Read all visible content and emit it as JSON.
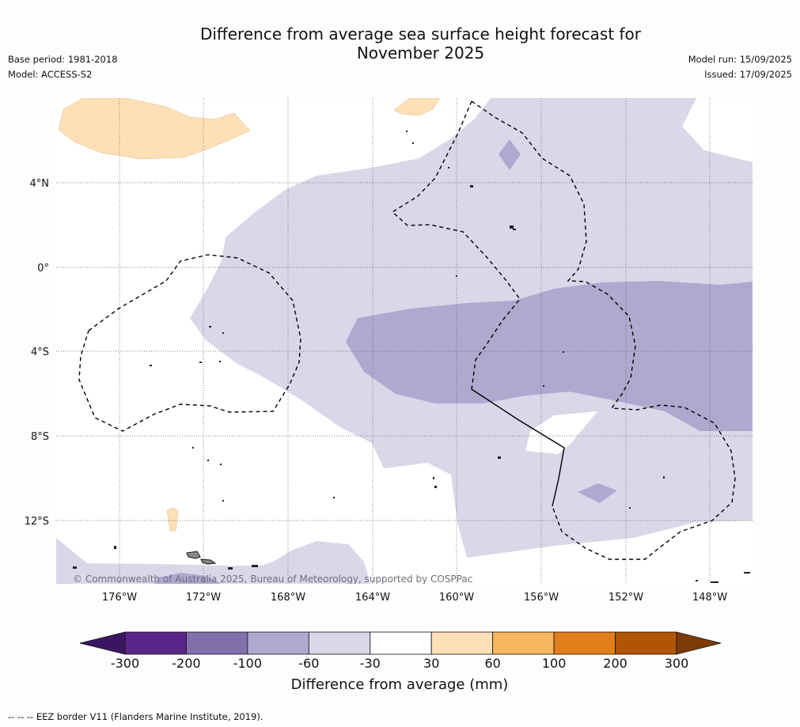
{
  "title": {
    "line1": "Difference from average sea surface height forecast for",
    "line2": "November 2025"
  },
  "meta": {
    "base_period": "Base period: 1981-2018",
    "model": "Model: ACCESS-S2",
    "model_run": "Model run: 15/09/2025",
    "issued": "Issued: 17/09/2025"
  },
  "map": {
    "lat_labels": [
      "4°N",
      "0°",
      "4°S",
      "8°S",
      "12°S"
    ],
    "lon_labels": [
      "176°W",
      "172°W",
      "168°W",
      "164°W",
      "160°W",
      "156°W",
      "152°W",
      "148°W"
    ],
    "copyright": "© Commonwealth of Australia 2025, Bureau of Meteorology, supported by COSPPac",
    "colors": {
      "pos_30_60": "#fde0b6",
      "neg_60_30": "#d8d8e9",
      "neg_100_60": "#afa9d0",
      "land": "#888888",
      "eez_line": "#000000"
    }
  },
  "colorbar": {
    "ticks": [
      "-300",
      "-200",
      "-100",
      "-60",
      "-30",
      "30",
      "60",
      "100",
      "200",
      "300"
    ],
    "colors": [
      "#3a1662",
      "#5a2488",
      "#8170ab",
      "#afa9d0",
      "#d8d8e9",
      "#ffffff",
      "#fde0b6",
      "#f8b75f",
      "#e1801a",
      "#b05408",
      "#7c3b07"
    ],
    "label": "Difference from average (mm)"
  },
  "footnote": "-- -- -- EEZ border V11 (Flanders Marine Institute, 2019)."
}
